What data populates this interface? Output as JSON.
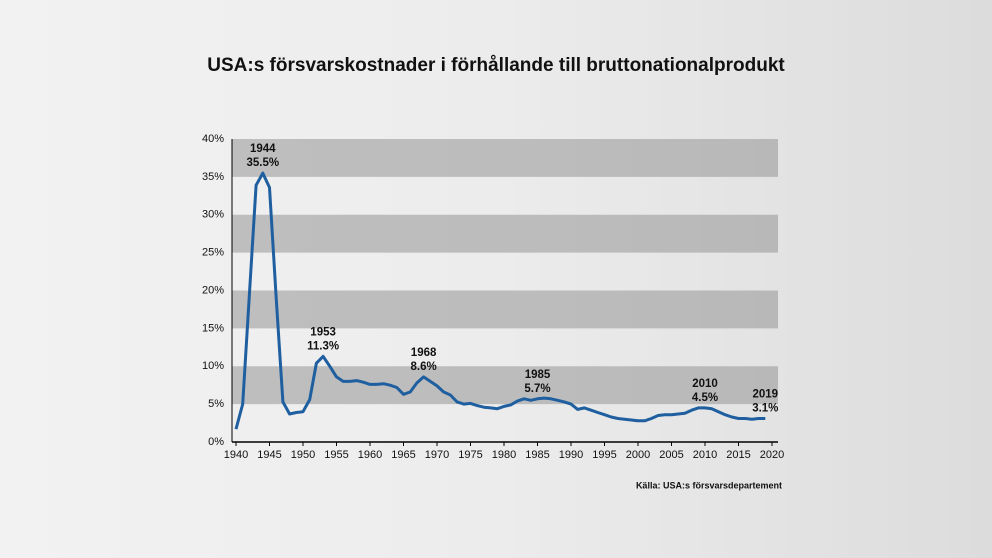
{
  "chart_data": {
    "type": "line",
    "title": "USA:s försvarskostnader i förhållande till bruttonationalprodukt",
    "source": "Källa: USA:s försvarsdepartement",
    "x": [
      1940,
      1941,
      1942,
      1943,
      1944,
      1945,
      1946,
      1947,
      1948,
      1949,
      1950,
      1951,
      1952,
      1953,
      1954,
      1955,
      1956,
      1957,
      1958,
      1959,
      1960,
      1961,
      1962,
      1963,
      1964,
      1965,
      1966,
      1967,
      1968,
      1969,
      1970,
      1971,
      1972,
      1973,
      1974,
      1975,
      1976,
      1977,
      1978,
      1979,
      1980,
      1981,
      1982,
      1983,
      1984,
      1985,
      1986,
      1987,
      1988,
      1989,
      1990,
      1991,
      1992,
      1993,
      1994,
      1995,
      1996,
      1997,
      1998,
      1999,
      2000,
      2001,
      2002,
      2003,
      2004,
      2005,
      2006,
      2007,
      2008,
      2009,
      2010,
      2011,
      2012,
      2013,
      2014,
      2015,
      2016,
      2017,
      2018,
      2019
    ],
    "series": [
      {
        "color": "#1f5fa0",
        "values": [
          1.7,
          5.0,
          19.5,
          33.9,
          35.5,
          33.6,
          19.0,
          5.3,
          3.7,
          3.9,
          4.0,
          5.6,
          10.4,
          11.3,
          10.0,
          8.6,
          8.0,
          8.0,
          8.1,
          7.9,
          7.6,
          7.6,
          7.7,
          7.5,
          7.2,
          6.3,
          6.6,
          7.8,
          8.6,
          8.0,
          7.4,
          6.6,
          6.2,
          5.3,
          5.0,
          5.1,
          4.8,
          4.6,
          4.5,
          4.4,
          4.7,
          4.9,
          5.4,
          5.7,
          5.5,
          5.7,
          5.8,
          5.7,
          5.5,
          5.3,
          5.0,
          4.3,
          4.5,
          4.2,
          3.9,
          3.6,
          3.3,
          3.1,
          3.0,
          2.9,
          2.8,
          2.8,
          3.1,
          3.5,
          3.6,
          3.6,
          3.7,
          3.8,
          4.2,
          4.5,
          4.5,
          4.4,
          4.0,
          3.6,
          3.3,
          3.1,
          3.1,
          3.0,
          3.1,
          3.1
        ]
      }
    ],
    "annotations": [
      {
        "x": 1944,
        "y": 35.5,
        "label": "35.5%"
      },
      {
        "x": 1953,
        "y": 11.3,
        "label": "11.3%"
      },
      {
        "x": 1968,
        "y": 8.6,
        "label": "8.6%"
      },
      {
        "x": 1985,
        "y": 5.7,
        "label": "5.7%"
      },
      {
        "x": 2010,
        "y": 4.5,
        "label": "4.5%"
      },
      {
        "x": 2019,
        "y": 3.1,
        "label": "3.1%"
      }
    ],
    "xlim": [
      1940,
      2020
    ],
    "xticks": [
      1940,
      1945,
      1950,
      1955,
      1960,
      1965,
      1970,
      1975,
      1980,
      1985,
      1990,
      1995,
      2000,
      2005,
      2010,
      2015,
      2020
    ],
    "ylim": [
      0,
      40
    ],
    "yticks": [
      {
        "value": 0,
        "label": "0%"
      },
      {
        "value": 5,
        "label": "5%"
      },
      {
        "value": 10,
        "label": "10%"
      },
      {
        "value": 15,
        "label": "15%"
      },
      {
        "value": 20,
        "label": "20%"
      },
      {
        "value": 25,
        "label": "25%"
      },
      {
        "value": 30,
        "label": "30%"
      },
      {
        "value": 35,
        "label": "35%"
      },
      {
        "value": 40,
        "label": "40%"
      }
    ],
    "grid": "bands"
  }
}
